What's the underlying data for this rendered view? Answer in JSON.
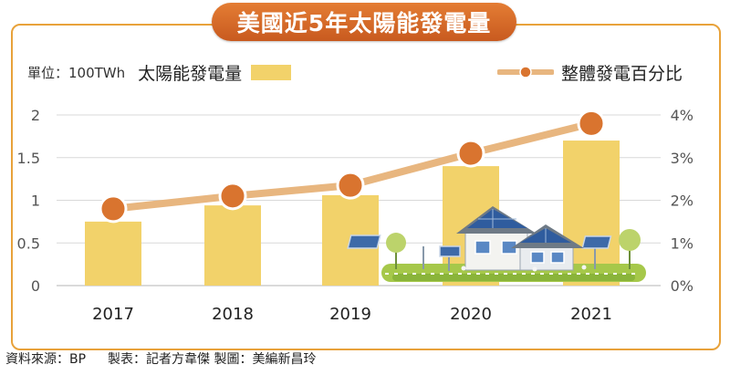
{
  "title": "美國近5年太陽能發電量",
  "legend": {
    "unit": "單位：100TWh",
    "bar_series": "太陽能發電量",
    "line_series": "整體發電百分比"
  },
  "source": {
    "data_source": "資料來源：BP",
    "credits": "製表：記者方韋傑 製圖：美編新昌玲"
  },
  "colors": {
    "bar": "#f2d26a",
    "line": "#e8b67f",
    "marker": "#d9742f",
    "frame": "#e8a23a",
    "title_bg": "#d86a28"
  },
  "illustration": "solar-houses-icon",
  "chart_data": {
    "type": "bar",
    "categories": [
      "2017",
      "2018",
      "2019",
      "2020",
      "2021"
    ],
    "series": [
      {
        "name": "太陽能發電量",
        "type": "bar",
        "axis": "left",
        "values": [
          0.75,
          0.94,
          1.06,
          1.4,
          1.7
        ]
      },
      {
        "name": "整體發電百分比",
        "type": "line",
        "axis": "right",
        "values": [
          1.8,
          2.1,
          2.35,
          3.1,
          3.8
        ]
      }
    ],
    "y_left": {
      "min": 0,
      "max": 2,
      "ticks": [
        "0",
        "0.5",
        "1",
        "1.5",
        "2"
      ]
    },
    "y_right": {
      "min": 0,
      "max": 4,
      "ticks": [
        "0%",
        "1%",
        "2%",
        "3%",
        "4%"
      ]
    },
    "grid": true
  }
}
